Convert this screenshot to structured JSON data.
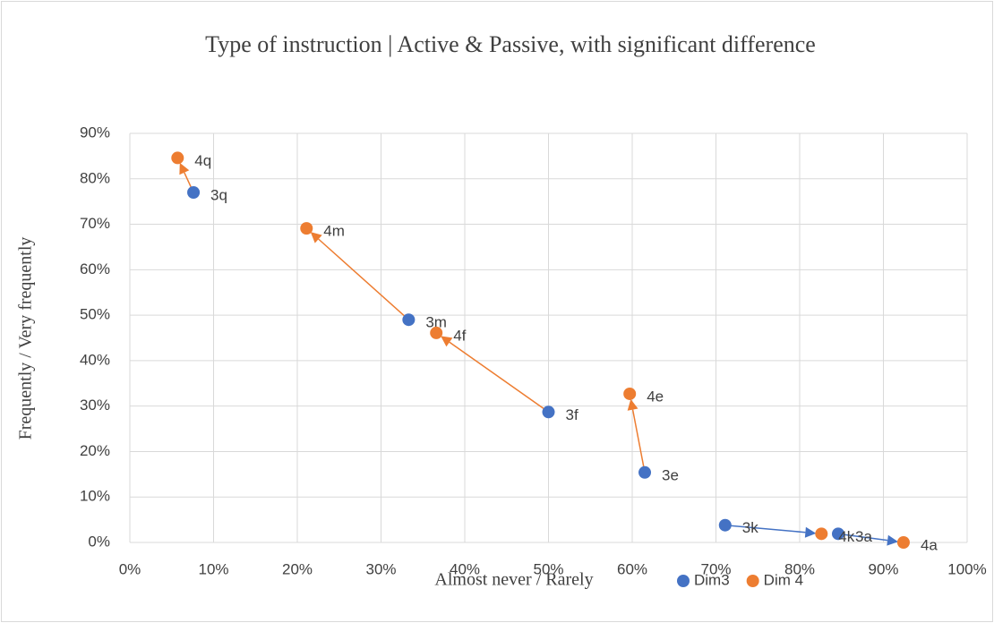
{
  "chart_data": {
    "type": "scatter",
    "title": "Type of instruction | Active & Passive, with significant difference",
    "x_label": "Almost never / Rarely",
    "y_label": "Frequently / Very frequently",
    "xlim": [
      0,
      100
    ],
    "ylim": [
      0,
      90
    ],
    "xticks": [
      {
        "value": 0,
        "label": "0%"
      },
      {
        "value": 10,
        "label": "10%"
      },
      {
        "value": 20,
        "label": "20%"
      },
      {
        "value": 30,
        "label": "30%"
      },
      {
        "value": 40,
        "label": "40%"
      },
      {
        "value": 50,
        "label": "50%"
      },
      {
        "value": 60,
        "label": "60%"
      },
      {
        "value": 70,
        "label": "70%"
      },
      {
        "value": 80,
        "label": "80%"
      },
      {
        "value": 90,
        "label": "90%"
      },
      {
        "value": 100,
        "label": "100%"
      }
    ],
    "yticks": [
      {
        "value": 0,
        "label": "0%"
      },
      {
        "value": 10,
        "label": "10%"
      },
      {
        "value": 20,
        "label": "20%"
      },
      {
        "value": 30,
        "label": "30%"
      },
      {
        "value": 40,
        "label": "40%"
      },
      {
        "value": 50,
        "label": "50%"
      },
      {
        "value": 60,
        "label": "60%"
      },
      {
        "value": 70,
        "label": "70%"
      },
      {
        "value": 80,
        "label": "80%"
      },
      {
        "value": 90,
        "label": "90%"
      }
    ],
    "grid": true,
    "legend": "bottom",
    "series": [
      {
        "name": "Dim3",
        "color": "#4472c4",
        "labels": [
          "3q",
          "3m",
          "3f",
          "3e",
          "3k",
          "3a"
        ],
        "x": [
          7.6,
          33.3,
          50.0,
          61.5,
          71.1,
          84.6
        ],
        "values": [
          77.0,
          49.0,
          28.7,
          15.4,
          3.8,
          1.9
        ]
      },
      {
        "name": "Dim 4",
        "color": "#ed7d31",
        "labels": [
          "4q",
          "4m",
          "4f",
          "4e",
          "4k",
          "4a"
        ],
        "x": [
          5.7,
          21.1,
          36.6,
          59.7,
          82.6,
          92.4
        ],
        "values": [
          84.6,
          69.1,
          46.1,
          32.7,
          1.9,
          0.0
        ]
      }
    ],
    "arrow_colors": [
      "#ed7d31",
      "#ed7d31",
      "#ed7d31",
      "#ed7d31",
      "#4472c4",
      "#4472c4"
    ]
  }
}
